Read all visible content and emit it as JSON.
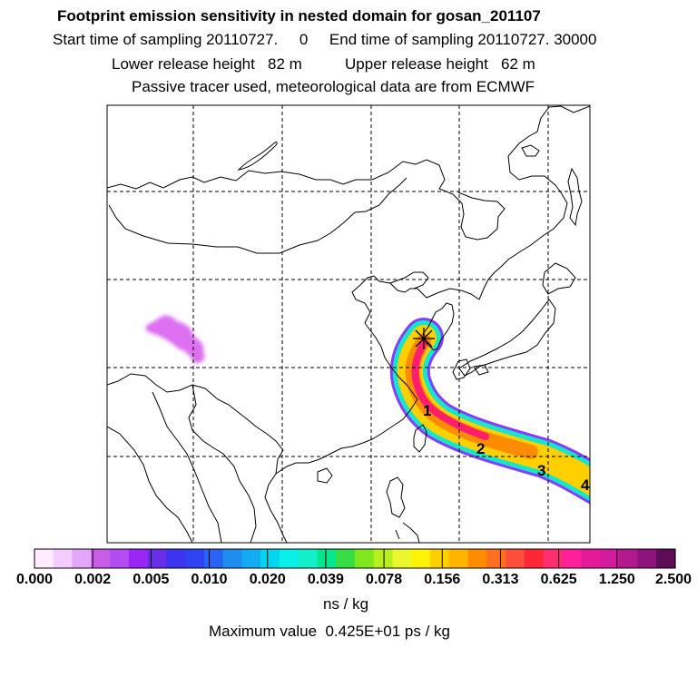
{
  "header": {
    "title": "Footprint emission sensitivity in nested domain for gosan_201107",
    "line2": "Start time of sampling 20110727.     0     End time of sampling 20110727. 30000",
    "line3": "Lower release height   82 m          Upper release height   62 m",
    "line4": "Passive tracer used, meteorological data are from ECMWF"
  },
  "map": {
    "release_site_marker": "star-icon",
    "track_labels": [
      "1",
      "2",
      "3",
      "4"
    ],
    "colors": {
      "plume_core": "#ff1f6e",
      "plume_mid": "#ffcf00",
      "plume_outer": "#17e6c8",
      "plume_edge": "#7a28ff",
      "inland_patch": "#dc70f0"
    }
  },
  "colorbar": {
    "colors": [
      "#ffeaff",
      "#f6cbff",
      "#e3a6f8",
      "#c95de8",
      "#b44df1",
      "#9b25f4",
      "#6a2ee8",
      "#3f33f2",
      "#2f43f2",
      "#2a63f3",
      "#1f8cf0",
      "#13acf3",
      "#05d6f0",
      "#07f0ec",
      "#12f0c9",
      "#07e58f",
      "#36dd43",
      "#7ee71e",
      "#b7ef1f",
      "#ebf72c",
      "#fff305",
      "#ffcf00",
      "#ffb400",
      "#ff8c00",
      "#ff6f1f",
      "#ff4d3b",
      "#ff2638",
      "#ff2f6f",
      "#ff1f9a",
      "#e51a9a",
      "#d31b9f",
      "#b11a8e",
      "#8e137d",
      "#5c0d55"
    ],
    "tick_labels": [
      "0.000",
      "0.002",
      "0.005",
      "0.010",
      "0.020",
      "0.039",
      "0.078",
      "0.156",
      "0.313",
      "0.625",
      "1.250",
      "2.500"
    ],
    "unit": "ns / kg",
    "max_value_text": "Maximum value  0.425E+01 ps / kg"
  }
}
